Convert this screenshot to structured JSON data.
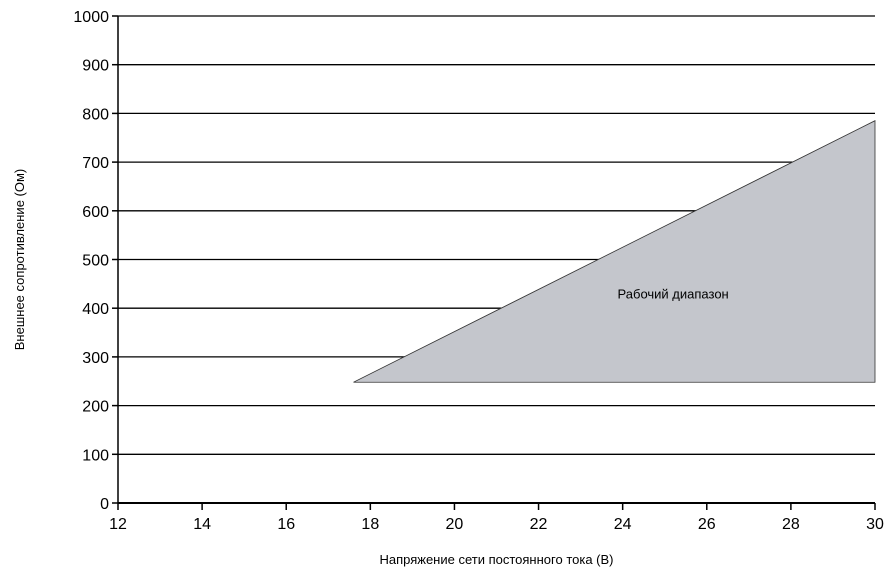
{
  "chart_data": {
    "type": "area",
    "title": "",
    "xlabel": "Напряжение сети постоянного тока (В)",
    "ylabel": "Внешнее сопротивление (Ом)",
    "xlim": [
      12,
      30
    ],
    "ylim": [
      0,
      1000
    ],
    "x_ticks": [
      12,
      14,
      16,
      18,
      20,
      22,
      24,
      26,
      28,
      30
    ],
    "y_ticks": [
      0,
      100,
      200,
      300,
      400,
      500,
      600,
      700,
      800,
      900,
      1000
    ],
    "grid": {
      "horizontal": true,
      "vertical": false
    },
    "region": {
      "name": "Рабочий диапазон",
      "points": [
        {
          "x": 17.6,
          "y": 248
        },
        {
          "x": 30,
          "y": 785
        },
        {
          "x": 30,
          "y": 248
        }
      ]
    },
    "annotations": [
      {
        "text": "Рабочий диапазон",
        "x": 25.2,
        "y": 430
      }
    ],
    "colors": {
      "region_fill": "#c4c6cc",
      "region_stroke": "#333333",
      "grid": "#000000",
      "axis": "#000000"
    }
  }
}
